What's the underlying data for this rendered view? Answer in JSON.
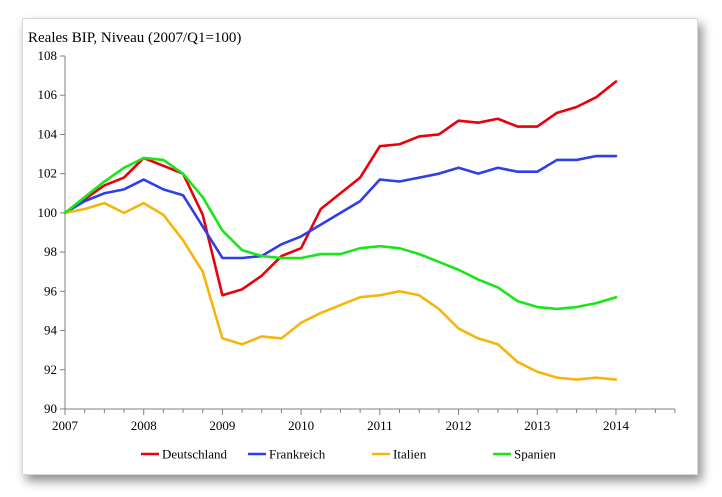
{
  "chart_data": {
    "type": "line",
    "title": "Reales BIP, Niveau (2007/Q1=100)",
    "xlabel": "",
    "ylabel": "",
    "xlim": [
      2007,
      2014.75
    ],
    "ylim": [
      90,
      108
    ],
    "x_ticks": [
      2007,
      2008,
      2009,
      2010,
      2011,
      2012,
      2013,
      2014
    ],
    "y_ticks": [
      90,
      92,
      94,
      96,
      98,
      100,
      102,
      104,
      106,
      108
    ],
    "grid": false,
    "legend_position": "bottom",
    "x": [
      2007.0,
      2007.25,
      2007.5,
      2007.75,
      2008.0,
      2008.25,
      2008.5,
      2008.75,
      2009.0,
      2009.25,
      2009.5,
      2009.75,
      2010.0,
      2010.25,
      2010.5,
      2010.75,
      2011.0,
      2011.25,
      2011.5,
      2011.75,
      2012.0,
      2012.25,
      2012.5,
      2012.75,
      2013.0,
      2013.25,
      2013.5,
      2013.75,
      2014.0
    ],
    "series": [
      {
        "name": "Deutschland",
        "color": "#e8000b",
        "values": [
          100.0,
          100.7,
          101.4,
          101.8,
          102.8,
          102.4,
          102.0,
          99.9,
          95.8,
          96.1,
          96.8,
          97.8,
          98.2,
          100.2,
          101.0,
          101.8,
          103.4,
          103.5,
          103.9,
          104.0,
          104.7,
          104.6,
          104.8,
          104.4,
          104.4,
          105.1,
          105.4,
          105.9,
          106.7
        ]
      },
      {
        "name": "Frankreich",
        "color": "#2f3fe6",
        "values": [
          100.0,
          100.6,
          101.0,
          101.2,
          101.7,
          101.2,
          100.9,
          99.3,
          97.7,
          97.7,
          97.8,
          98.4,
          98.8,
          99.4,
          100.0,
          100.6,
          101.7,
          101.6,
          101.8,
          102.0,
          102.3,
          102.0,
          102.3,
          102.1,
          102.1,
          102.7,
          102.7,
          102.9,
          102.9
        ]
      },
      {
        "name": "Italien",
        "color": "#f7b50b",
        "values": [
          100.0,
          100.2,
          100.5,
          100.0,
          100.5,
          99.9,
          98.6,
          97.0,
          93.6,
          93.3,
          93.7,
          93.6,
          94.4,
          94.9,
          95.3,
          95.7,
          95.8,
          96.0,
          95.8,
          95.1,
          94.1,
          93.6,
          93.3,
          92.4,
          91.9,
          91.6,
          91.5,
          91.6,
          91.5
        ]
      },
      {
        "name": "Spanien",
        "color": "#19e619",
        "values": [
          100.0,
          100.8,
          101.6,
          102.3,
          102.8,
          102.7,
          102.0,
          100.8,
          99.1,
          98.1,
          97.8,
          97.7,
          97.7,
          97.9,
          97.9,
          98.2,
          98.3,
          98.2,
          97.9,
          97.5,
          97.1,
          96.6,
          96.2,
          95.5,
          95.2,
          95.1,
          95.2,
          95.4,
          95.7
        ]
      }
    ]
  }
}
